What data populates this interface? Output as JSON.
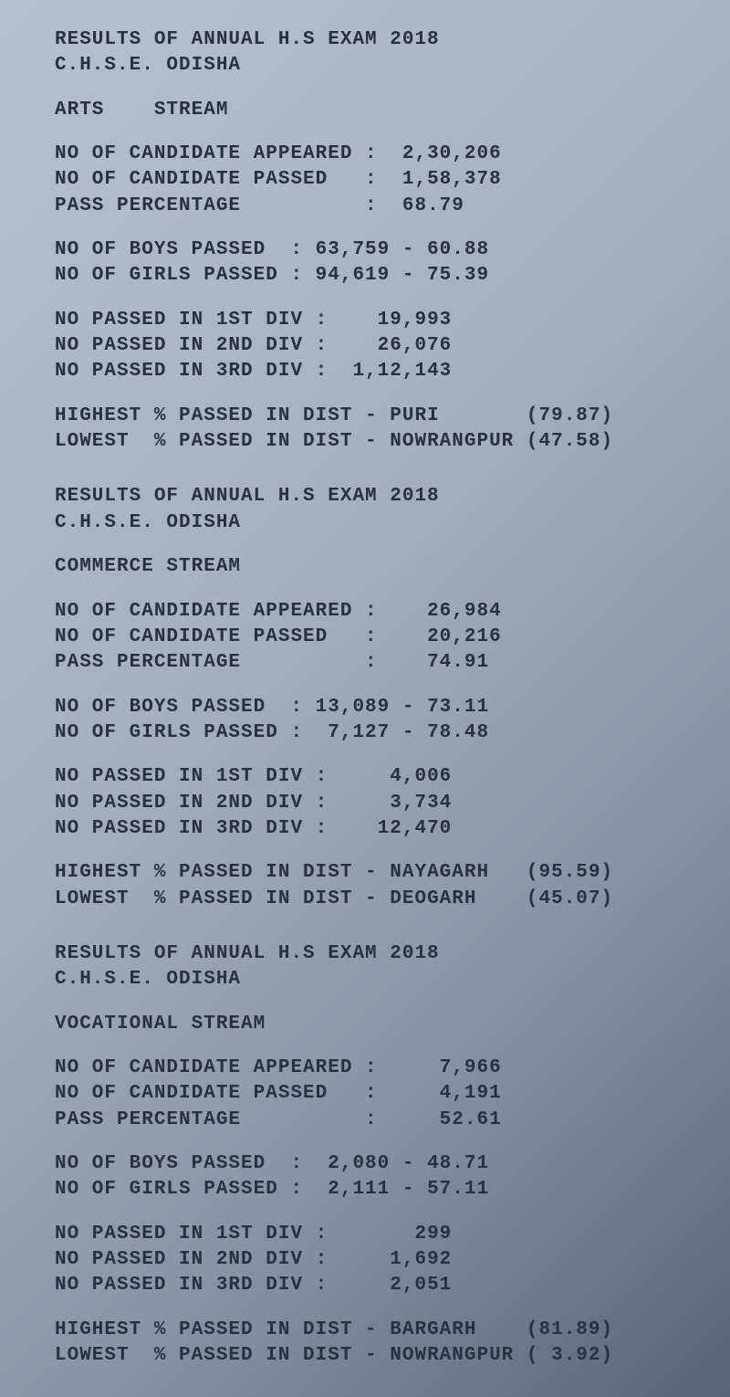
{
  "header_title": "RESULTS OF ANNUAL H.S EXAM 2018",
  "header_org": "C.H.S.E. ODISHA",
  "streams": [
    {
      "name": "ARTS    STREAM",
      "appeared_label": "NO OF CANDIDATE APPEARED :",
      "appeared_value": "  2,30,206",
      "passed_label": "NO OF CANDIDATE PASSED   :",
      "passed_value": "  1,58,378",
      "pct_label": "PASS PERCENTAGE          :",
      "pct_value": "  68.79",
      "boys_label": "NO OF BOYS PASSED  :",
      "boys_value": " 63,759 - 60.88",
      "girls_label": "NO OF GIRLS PASSED :",
      "girls_value": " 94,619 - 75.39",
      "div1_label": "NO PASSED IN 1ST DIV :",
      "div1_value": "    19,993",
      "div2_label": "NO PASSED IN 2ND DIV :",
      "div2_value": "    26,076",
      "div3_label": "NO PASSED IN 3RD DIV :",
      "div3_value": "  1,12,143",
      "hi_label": "HIGHEST % PASSED IN DIST - ",
      "hi_dist": "PURI       ",
      "hi_pct": "(79.87)",
      "lo_label": "LOWEST  % PASSED IN DIST - ",
      "lo_dist": "NOWRANGPUR ",
      "lo_pct": "(47.58)"
    },
    {
      "name": "COMMERCE STREAM",
      "appeared_label": "NO OF CANDIDATE APPEARED :",
      "appeared_value": "    26,984",
      "passed_label": "NO OF CANDIDATE PASSED   :",
      "passed_value": "    20,216",
      "pct_label": "PASS PERCENTAGE          :",
      "pct_value": "    74.91",
      "boys_label": "NO OF BOYS PASSED  :",
      "boys_value": " 13,089 - 73.11",
      "girls_label": "NO OF GIRLS PASSED :",
      "girls_value": "  7,127 - 78.48",
      "div1_label": "NO PASSED IN 1ST DIV :",
      "div1_value": "     4,006",
      "div2_label": "NO PASSED IN 2ND DIV :",
      "div2_value": "     3,734",
      "div3_label": "NO PASSED IN 3RD DIV :",
      "div3_value": "    12,470",
      "hi_label": "HIGHEST % PASSED IN DIST - ",
      "hi_dist": "NAYAGARH   ",
      "hi_pct": "(95.59)",
      "lo_label": "LOWEST  % PASSED IN DIST - ",
      "lo_dist": "DEOGARH    ",
      "lo_pct": "(45.07)"
    },
    {
      "name": "VOCATIONAL STREAM",
      "appeared_label": "NO OF CANDIDATE APPEARED :",
      "appeared_value": "     7,966",
      "passed_label": "NO OF CANDIDATE PASSED   :",
      "passed_value": "     4,191",
      "pct_label": "PASS PERCENTAGE          :",
      "pct_value": "     52.61",
      "boys_label": "NO OF BOYS PASSED  :",
      "boys_value": "  2,080 - 48.71",
      "girls_label": "NO OF GIRLS PASSED :",
      "girls_value": "  2,111 - 57.11",
      "div1_label": "NO PASSED IN 1ST DIV :",
      "div1_value": "       299",
      "div2_label": "NO PASSED IN 2ND DIV :",
      "div2_value": "     1,692",
      "div3_label": "NO PASSED IN 3RD DIV :",
      "div3_value": "     2,051",
      "hi_label": "HIGHEST % PASSED IN DIST - ",
      "hi_dist": "BARGARH    ",
      "hi_pct": "(81.89)",
      "lo_label": "LOWEST  % PASSED IN DIST - ",
      "lo_dist": "NOWRANGPUR ",
      "lo_pct": "( 3.92)"
    }
  ]
}
